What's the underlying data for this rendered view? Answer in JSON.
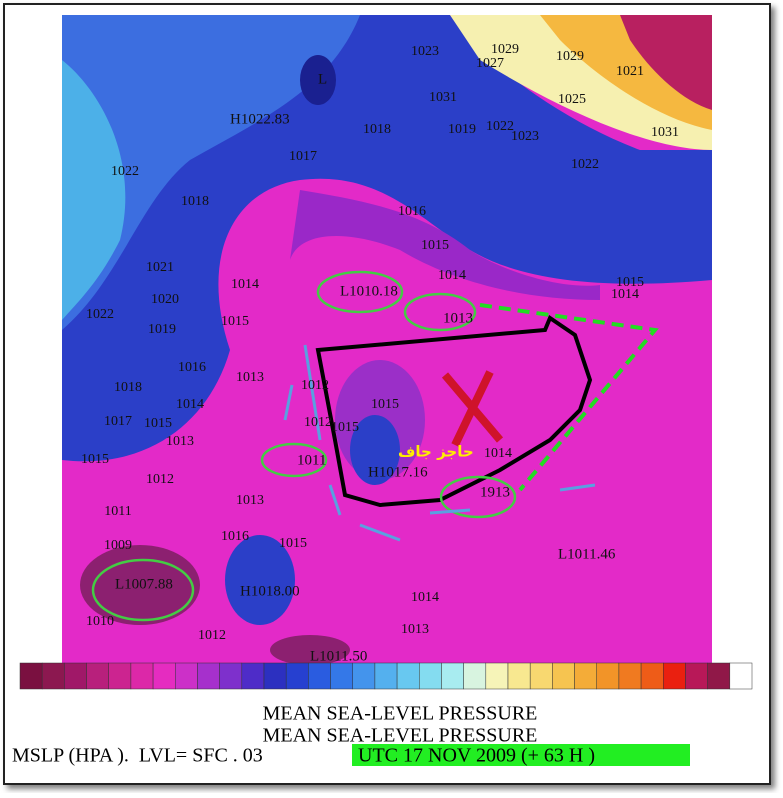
{
  "map": {
    "isobar_labels": [
      "1023",
      "1029",
      "1027",
      "1029",
      "1021",
      "1031",
      "1025",
      "1018",
      "1019",
      "1022",
      "1023",
      "1031",
      "1017",
      "1022",
      "1022",
      "1018",
      "1016",
      "1015",
      "1014",
      "1021",
      "1020",
      "1014",
      "1015",
      "1014",
      "1022",
      "1019",
      "1015",
      "1016",
      "1013",
      "1012",
      "1018",
      "1014",
      "1015",
      "1017",
      "1015",
      "1012",
      "1015",
      "1013",
      "1015",
      "1014",
      "1012",
      "1013",
      "1011",
      "1016",
      "1015",
      "1009",
      "1010",
      "1012",
      "1014",
      "1013"
    ],
    "pressure_centers": [
      "H1022.83",
      "L",
      "L1010.18",
      "1013",
      "1011",
      "H1017.16",
      "1913",
      "L1011.46",
      "L1007.88",
      "H1018.00",
      "L1011.50"
    ],
    "annotation": "حاجز جاف"
  },
  "footer": {
    "title_lines": [
      "MEAN SEA-LEVEL PRESSURE",
      "MEAN SEA-LEVEL PRESSURE"
    ],
    "variable": "MSLP (HPA ).  LVL= SFC . 03",
    "time": "UTC 17 NOV 2009 (+ 63 H )"
  }
}
